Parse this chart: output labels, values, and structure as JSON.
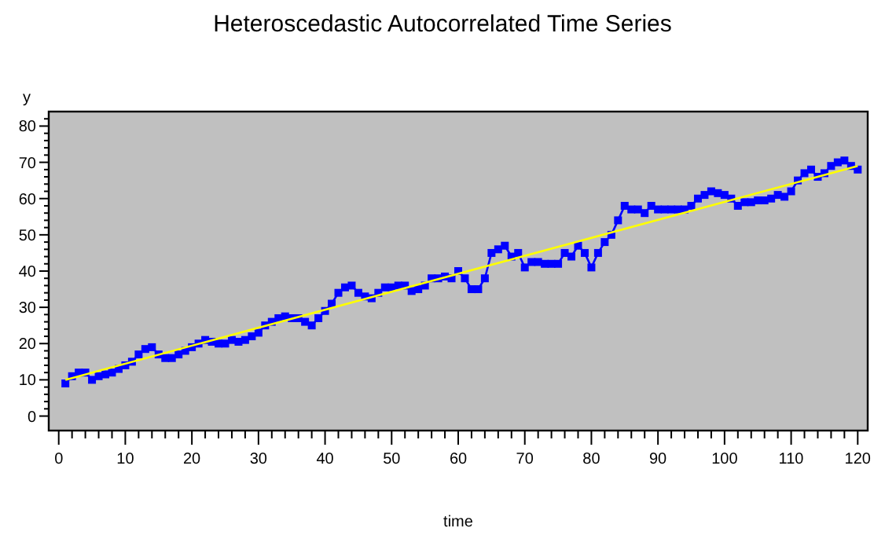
{
  "chart_data": {
    "type": "line",
    "title": "Heteroscedastic Autocorrelated Time Series",
    "xlabel": "time",
    "ylabel": "y",
    "xlim": [
      -1.5,
      121.5
    ],
    "ylim": [
      -4,
      84
    ],
    "xticks": [
      0,
      {
        "value": 2,
        "label": null
      },
      {
        "value": 4,
        "label": null
      },
      {
        "value": 6,
        "label": null
      },
      {
        "value": 8,
        "label": null
      },
      10,
      {
        "value": 12,
        "label": null
      },
      {
        "value": 14,
        "label": null
      },
      {
        "value": 16,
        "label": null
      },
      {
        "value": 18,
        "label": null
      },
      20,
      {
        "value": 22,
        "label": null
      },
      {
        "value": 24,
        "label": null
      },
      {
        "value": 26,
        "label": null
      },
      {
        "value": 28,
        "label": null
      },
      30,
      {
        "value": 32,
        "label": null
      },
      {
        "value": 34,
        "label": null
      },
      {
        "value": 36,
        "label": null
      },
      {
        "value": 38,
        "label": null
      },
      40,
      {
        "value": 42,
        "label": null
      },
      {
        "value": 44,
        "label": null
      },
      {
        "value": 46,
        "label": null
      },
      {
        "value": 48,
        "label": null
      },
      50,
      {
        "value": 52,
        "label": null
      },
      {
        "value": 54,
        "label": null
      },
      {
        "value": 56,
        "label": null
      },
      {
        "value": 58,
        "label": null
      },
      60,
      {
        "value": 62,
        "label": null
      },
      {
        "value": 64,
        "label": null
      },
      {
        "value": 66,
        "label": null
      },
      {
        "value": 68,
        "label": null
      },
      70,
      {
        "value": 72,
        "label": null
      },
      {
        "value": 74,
        "label": null
      },
      {
        "value": 76,
        "label": null
      },
      {
        "value": 78,
        "label": null
      },
      80,
      {
        "value": 82,
        "label": null
      },
      {
        "value": 84,
        "label": null
      },
      {
        "value": 86,
        "label": null
      },
      {
        "value": 88,
        "label": null
      },
      90,
      {
        "value": 92,
        "label": null
      },
      {
        "value": 94,
        "label": null
      },
      {
        "value": 96,
        "label": null
      },
      {
        "value": 98,
        "label": null
      },
      100,
      {
        "value": 102,
        "label": null
      },
      {
        "value": 104,
        "label": null
      },
      {
        "value": 106,
        "label": null
      },
      {
        "value": 108,
        "label": null
      },
      110,
      {
        "value": 112,
        "label": null
      },
      {
        "value": 114,
        "label": null
      },
      {
        "value": 116,
        "label": null
      },
      {
        "value": 118,
        "label": null
      },
      120
    ],
    "yticks": [
      0,
      {
        "value": 2,
        "label": null
      },
      {
        "value": 4,
        "label": null
      },
      {
        "value": 6,
        "label": null
      },
      {
        "value": 8,
        "label": null
      },
      10,
      {
        "value": 12,
        "label": null
      },
      {
        "value": 14,
        "label": null
      },
      {
        "value": 16,
        "label": null
      },
      {
        "value": 18,
        "label": null
      },
      20,
      {
        "value": 22,
        "label": null
      },
      {
        "value": 24,
        "label": null
      },
      {
        "value": 26,
        "label": null
      },
      {
        "value": 28,
        "label": null
      },
      30,
      {
        "value": 32,
        "label": null
      },
      {
        "value": 34,
        "label": null
      },
      {
        "value": 36,
        "label": null
      },
      {
        "value": 38,
        "label": null
      },
      40,
      {
        "value": 42,
        "label": null
      },
      {
        "value": 44,
        "label": null
      },
      {
        "value": 46,
        "label": null
      },
      {
        "value": 48,
        "label": null
      },
      50,
      {
        "value": 52,
        "label": null
      },
      {
        "value": 54,
        "label": null
      },
      {
        "value": 56,
        "label": null
      },
      {
        "value": 58,
        "label": null
      },
      60,
      {
        "value": 62,
        "label": null
      },
      {
        "value": 64,
        "label": null
      },
      {
        "value": 66,
        "label": null
      },
      {
        "value": 68,
        "label": null
      },
      70,
      {
        "value": 72,
        "label": null
      },
      {
        "value": 74,
        "label": null
      },
      {
        "value": 76,
        "label": null
      },
      {
        "value": 78,
        "label": null
      },
      80,
      {
        "value": 82,
        "label": null
      }
    ],
    "grid": false,
    "series": [
      {
        "color": "#0000ff",
        "marker": "square",
        "x": [
          1,
          2,
          3,
          4,
          5,
          6,
          7,
          8,
          9,
          10,
          11,
          12,
          13,
          14,
          15,
          16,
          17,
          18,
          19,
          20,
          21,
          22,
          23,
          24,
          25,
          26,
          27,
          28,
          29,
          30,
          31,
          32,
          33,
          34,
          35,
          36,
          37,
          38,
          39,
          40,
          41,
          42,
          43,
          44,
          45,
          46,
          47,
          48,
          49,
          50,
          51,
          52,
          53,
          54,
          55,
          56,
          57,
          58,
          59,
          60,
          61,
          62,
          63,
          64,
          65,
          66,
          67,
          68,
          69,
          70,
          71,
          72,
          73,
          74,
          75,
          76,
          77,
          78,
          79,
          80,
          81,
          82,
          83,
          84,
          85,
          86,
          87,
          88,
          89,
          90,
          91,
          92,
          93,
          94,
          95,
          96,
          97,
          98,
          99,
          100,
          101,
          102,
          103,
          104,
          105,
          106,
          107,
          108,
          109,
          110,
          111,
          112,
          113,
          114,
          115,
          116,
          117,
          118,
          119,
          120
        ],
        "values": [
          9,
          11,
          12,
          12,
          10,
          11,
          11.5,
          12,
          13,
          14,
          15,
          17,
          18.5,
          19,
          17,
          16,
          16,
          17,
          18,
          19,
          20,
          21,
          20.5,
          20,
          20,
          21,
          20.5,
          21,
          22,
          23,
          25,
          26,
          27,
          27.5,
          27,
          27,
          26,
          25,
          27,
          29,
          31,
          34,
          35.5,
          36,
          34,
          33,
          32.5,
          34,
          35.5,
          35.5,
          36,
          36,
          34.5,
          35,
          36,
          38,
          38,
          38.5,
          38,
          40,
          38,
          35,
          35,
          38,
          45,
          46,
          47,
          44,
          45,
          41,
          42.5,
          42.5,
          42,
          42,
          42,
          45,
          44,
          47,
          45,
          41,
          45,
          48,
          50,
          54,
          58,
          57,
          57,
          56,
          58,
          57,
          57,
          57,
          57,
          57,
          58,
          60,
          61,
          62,
          61.5,
          61,
          60,
          58,
          59,
          59,
          59.5,
          59.5,
          60,
          61,
          60.5,
          62,
          65,
          67,
          68,
          66,
          67,
          69,
          70,
          70.5,
          69,
          68
        ]
      },
      {
        "color": "#ffff00",
        "marker": "none",
        "x": [
          1,
          120
        ],
        "values": [
          10,
          69
        ]
      }
    ]
  }
}
